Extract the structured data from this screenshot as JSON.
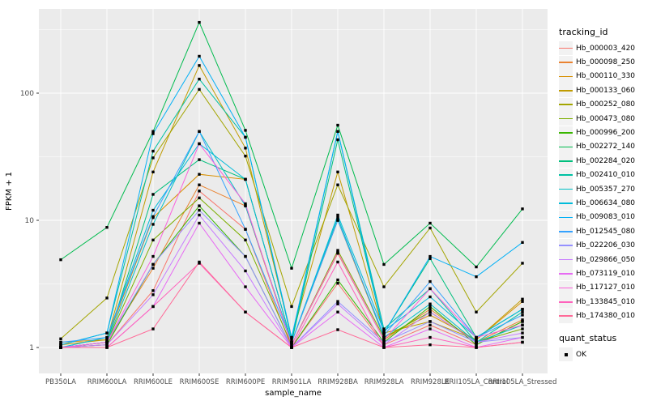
{
  "figure": {
    "panel_bg": "#EBEBEB",
    "grid_color": "#FFFFFF",
    "tick_text_color": "#4D4D4D",
    "point_color": "#000000"
  },
  "axes": {
    "y_title": "FPKM + 1",
    "x_title": "sample_name",
    "y_ticks": [
      1,
      10,
      100
    ],
    "y_scale": "log10"
  },
  "legend": {
    "tracking_title": "tracking_id",
    "quant_title": "quant_status",
    "quant_value": "OK"
  },
  "chart_data": {
    "type": "line",
    "title": "",
    "xlabel": "sample_name",
    "ylabel": "FPKM + 1",
    "y_scale": "log10",
    "ylim": [
      1,
      457
    ],
    "grid": true,
    "legend_position": "right",
    "marker": "black-square",
    "categories": [
      "PB350LA",
      "RRIM600LA",
      "RRIM600LE",
      "RRIM600SE",
      "RRIM600PE",
      "RRIM901LA",
      "RRIM928BA",
      "RRIM928LA",
      "RRIM928LE",
      "RRII105LA_Control",
      "RRII105LA_Stressed"
    ],
    "series": [
      {
        "name": "Hb_000003_420",
        "color": "#F8766D",
        "values": [
          1.0,
          1.05,
          2.8,
          17,
          8.5,
          1.0,
          3.2,
          1.05,
          1.5,
          1.05,
          1.6
        ]
      },
      {
        "name": "Hb_000098_250",
        "color": "#EA8331",
        "values": [
          1.0,
          1.1,
          4.2,
          19,
          13,
          1.05,
          5.5,
          1.15,
          2.0,
          1.1,
          1.65
        ]
      },
      {
        "name": "Hb_000110_330",
        "color": "#D89000",
        "values": [
          1.1,
          1.15,
          10.5,
          23,
          21,
          1.1,
          10,
          1.2,
          1.8,
          1.15,
          2.3
        ]
      },
      {
        "name": "Hb_000133_060",
        "color": "#C09B00",
        "values": [
          1.05,
          1.15,
          24,
          165,
          37,
          1.2,
          24,
          1.3,
          1.6,
          1.15,
          2.4
        ]
      },
      {
        "name": "Hb_000252_080",
        "color": "#A3A500",
        "values": [
          1.17,
          2.45,
          31,
          107,
          32,
          2.1,
          19,
          3.0,
          8.7,
          1.9,
          4.6
        ]
      },
      {
        "name": "Hb_000473_080",
        "color": "#7CAE00",
        "values": [
          1.0,
          1.1,
          7.0,
          15,
          7.0,
          1.05,
          5.8,
          1.2,
          1.9,
          1.1,
          1.4
        ]
      },
      {
        "name": "Hb_000996_200",
        "color": "#39B600",
        "values": [
          1.0,
          1.05,
          4.5,
          13,
          5.2,
          1.0,
          3.4,
          1.1,
          2.1,
          1.05,
          1.6
        ]
      },
      {
        "name": "Hb_002272_140",
        "color": "#00BB4E",
        "values": [
          4.9,
          8.8,
          50,
          360,
          51,
          4.2,
          56,
          4.5,
          9.5,
          4.3,
          12.3
        ]
      },
      {
        "name": "Hb_002284_020",
        "color": "#00BF7D",
        "values": [
          1.0,
          1.1,
          16,
          30,
          21,
          1.1,
          43,
          1.3,
          5.0,
          1.2,
          2.0
        ]
      },
      {
        "name": "Hb_002410_010",
        "color": "#00C1A3",
        "values": [
          1.05,
          1.3,
          35,
          129,
          45,
          1.15,
          50,
          1.4,
          2.9,
          1.1,
          1.9
        ]
      },
      {
        "name": "Hb_005357_270",
        "color": "#00BFC4",
        "values": [
          1.0,
          1.1,
          9.3,
          50,
          13,
          1.1,
          10.5,
          1.2,
          2.2,
          1.1,
          1.5
        ]
      },
      {
        "name": "Hb_006634_080",
        "color": "#00BBDA",
        "values": [
          1.0,
          1.2,
          12,
          40,
          21,
          1.1,
          11,
          1.35,
          2.5,
          1.2,
          2.0
        ]
      },
      {
        "name": "Hb_009083_010",
        "color": "#00B0F6",
        "values": [
          1.05,
          1.3,
          48,
          195,
          45,
          1.2,
          50,
          1.3,
          5.2,
          3.6,
          6.7
        ]
      },
      {
        "name": "Hb_012545_080",
        "color": "#35A2FF",
        "values": [
          1.1,
          1.2,
          10.7,
          50,
          8.5,
          1.1,
          10,
          1.25,
          3.3,
          1.2,
          1.8
        ]
      },
      {
        "name": "Hb_022206_030",
        "color": "#9590FF",
        "values": [
          1.0,
          1.1,
          4.5,
          12,
          5.2,
          1.0,
          2.3,
          1.1,
          1.6,
          1.1,
          1.2
        ]
      },
      {
        "name": "Hb_029866_050",
        "color": "#C77CFF",
        "values": [
          1.0,
          1.05,
          2.6,
          11,
          4.0,
          1.0,
          2.2,
          1.05,
          1.9,
          1.1,
          1.3
        ]
      },
      {
        "name": "Hb_073119_010",
        "color": "#E76BF3",
        "values": [
          1.0,
          1.0,
          2.1,
          9.5,
          3.0,
          1.0,
          1.9,
          1.0,
          1.4,
          1.0,
          1.2
        ]
      },
      {
        "name": "Hb_117127_010",
        "color": "#FA62DB",
        "values": [
          1.0,
          1.1,
          5.2,
          40,
          13.5,
          1.05,
          5.6,
          1.15,
          2.9,
          1.2,
          1.5
        ]
      },
      {
        "name": "Hb_133845_010",
        "color": "#FF62BC",
        "values": [
          1.0,
          1.0,
          2.1,
          4.6,
          1.9,
          1.0,
          4.7,
          1.0,
          1.2,
          1.0,
          1.1
        ]
      },
      {
        "name": "Hb_174380_010",
        "color": "#FF6A98",
        "values": [
          1.0,
          1.0,
          1.4,
          4.7,
          1.9,
          1.0,
          1.38,
          1.0,
          1.05,
          1.0,
          1.1
        ]
      }
    ]
  }
}
